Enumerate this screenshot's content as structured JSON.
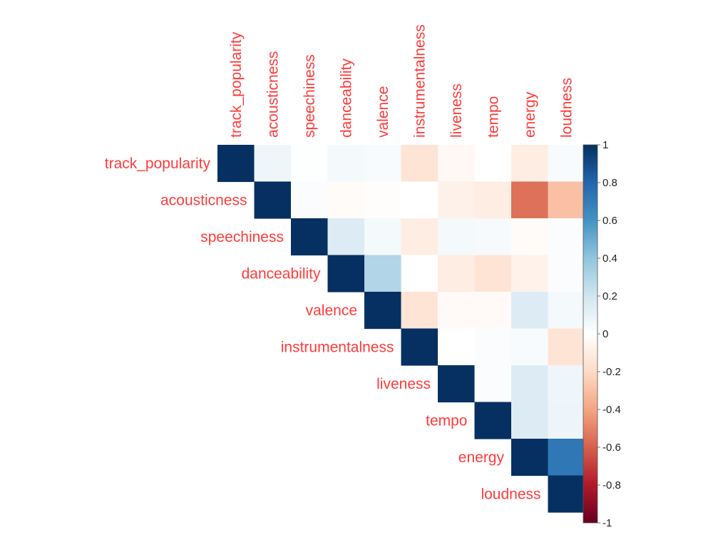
{
  "chart_data": {
    "type": "heatmap",
    "title": "",
    "layout": "upper-triangle",
    "variables": [
      "track_popularity",
      "acousticness",
      "speechiness",
      "danceability",
      "valence",
      "instrumentalness",
      "liveness",
      "tempo",
      "energy",
      "loudness"
    ],
    "matrix": [
      [
        1,
        0.07,
        0.01,
        0.05,
        0.03,
        -0.15,
        -0.04,
        0.0,
        -0.1,
        0.03
      ],
      [
        null,
        1,
        0.02,
        -0.02,
        -0.01,
        0.0,
        -0.08,
        -0.1,
        -0.55,
        -0.3
      ],
      [
        null,
        null,
        1,
        0.15,
        0.05,
        -0.1,
        0.05,
        0.04,
        -0.02,
        0.02
      ],
      [
        null,
        null,
        null,
        1,
        0.3,
        0.0,
        -0.1,
        -0.15,
        -0.07,
        0.02
      ],
      [
        null,
        null,
        null,
        null,
        1,
        -0.15,
        -0.03,
        -0.03,
        0.15,
        0.05
      ],
      [
        null,
        null,
        null,
        null,
        null,
        1,
        0.0,
        0.02,
        0.03,
        -0.15
      ],
      [
        null,
        null,
        null,
        null,
        null,
        null,
        1,
        0.02,
        0.15,
        0.07
      ],
      [
        null,
        null,
        null,
        null,
        null,
        null,
        null,
        1,
        0.15,
        0.08
      ],
      [
        null,
        null,
        null,
        null,
        null,
        null,
        null,
        null,
        1,
        0.72
      ],
      [
        null,
        null,
        null,
        null,
        null,
        null,
        null,
        null,
        null,
        1
      ]
    ],
    "colorbar": {
      "range": [
        -1,
        1
      ],
      "ticks": [
        "1",
        "0.8",
        "0.6",
        "0.4",
        "0.2",
        "0",
        "-0.2",
        "-0.4",
        "-0.6",
        "-0.8",
        "-1"
      ]
    },
    "label_color": "#ff3b3b",
    "colors": {
      "negative_end": "#67001f",
      "neutral": "#ffffff",
      "positive_end": "#053061"
    }
  }
}
